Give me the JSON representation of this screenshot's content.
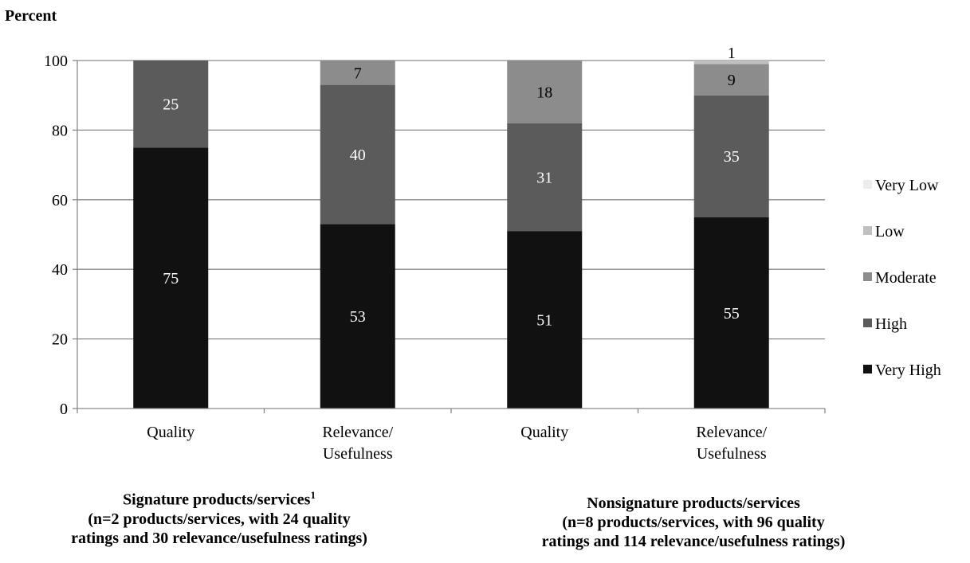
{
  "chart_data": {
    "type": "bar",
    "stacked": true,
    "title": "",
    "ylabel": "Percent",
    "xlabel": "",
    "ylim": [
      0,
      100
    ],
    "yticks": [
      0,
      20,
      40,
      60,
      80,
      100
    ],
    "grid": true,
    "legend_position": "right",
    "categories": [
      "Quality",
      "Relevance/ Usefulness",
      "Quality",
      "Relevance/ Usefulness"
    ],
    "category_lines": [
      [
        "Quality"
      ],
      [
        "Relevance/",
        "Usefulness"
      ],
      [
        "Quality"
      ],
      [
        "Relevance/",
        "Usefulness"
      ]
    ],
    "series": [
      {
        "name": "Very High",
        "color": "#111111",
        "label_color": "#ffffff",
        "values": [
          75,
          53,
          51,
          55
        ],
        "labels": [
          "75",
          "53",
          "51",
          "55"
        ]
      },
      {
        "name": "High",
        "color": "#5b5b5b",
        "label_color": "#ffffff",
        "values": [
          25,
          40,
          31,
          35
        ],
        "labels": [
          "25",
          "40",
          "31",
          "35"
        ]
      },
      {
        "name": "Moderate",
        "color": "#8c8c8c",
        "label_color": "#000000",
        "values": [
          0,
          7,
          18,
          9
        ],
        "labels": [
          "",
          "7",
          "18",
          "9"
        ]
      },
      {
        "name": "Low",
        "color": "#c0c0c0",
        "label_color": "#000000",
        "values": [
          0,
          0,
          0,
          1
        ],
        "labels": [
          "",
          "",
          "",
          "1"
        ]
      },
      {
        "name": "Very Low",
        "color": "#ededed",
        "label_color": "#000000",
        "values": [
          0,
          0,
          0,
          0
        ],
        "labels": [
          "",
          "",
          "",
          ""
        ]
      }
    ],
    "groups": [
      {
        "title": "Signature products/services",
        "superscript": "1",
        "line2": "(n=2 products/services, with 24 quality",
        "line3": "ratings and 30 relevance/usefulness ratings)"
      },
      {
        "title": "Nonsignature products/services",
        "superscript": "",
        "line2": "(n=8 products/services, with 96 quality",
        "line3": "ratings and 114 relevance/usefulness ratings)"
      }
    ]
  }
}
